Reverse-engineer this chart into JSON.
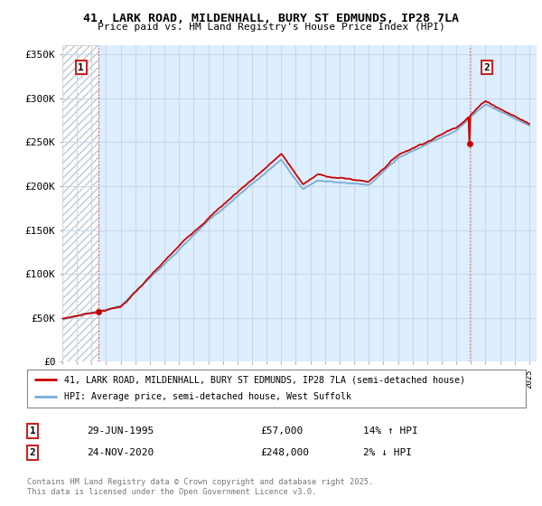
{
  "title_line1": "41, LARK ROAD, MILDENHALL, BURY ST EDMUNDS, IP28 7LA",
  "title_line2": "Price paid vs. HM Land Registry's House Price Index (HPI)",
  "yticks": [
    0,
    50000,
    100000,
    150000,
    200000,
    250000,
    300000,
    350000
  ],
  "ytick_labels": [
    "£0",
    "£50K",
    "£100K",
    "£150K",
    "£200K",
    "£250K",
    "£300K",
    "£350K"
  ],
  "year_start": 1993,
  "year_end": 2025,
  "sale1_year": 1995.49,
  "sale1_price": 57000,
  "sale2_year": 2020.9,
  "sale2_price": 248000,
  "hpi_color": "#7aadd4",
  "price_color": "#cc0000",
  "dashed_line_color": "#e06060",
  "legend_label1": "41, LARK ROAD, MILDENHALL, BURY ST EDMUNDS, IP28 7LA (semi-detached house)",
  "legend_label2": "HPI: Average price, semi-detached house, West Suffolk",
  "sale1_label": "1",
  "sale2_label": "2",
  "sale1_date": "29-JUN-1995",
  "sale1_amount": "£57,000",
  "sale1_hpi": "14% ↑ HPI",
  "sale2_date": "24-NOV-2020",
  "sale2_amount": "£248,000",
  "sale2_hpi": "2% ↓ HPI",
  "footer": "Contains HM Land Registry data © Crown copyright and database right 2025.\nThis data is licensed under the Open Government Licence v3.0.",
  "grid_color": "#c8d8e8",
  "fig_bg": "#ffffff",
  "plot_bg": "#ddeeff",
  "hatch_color": "#c0c8d0"
}
